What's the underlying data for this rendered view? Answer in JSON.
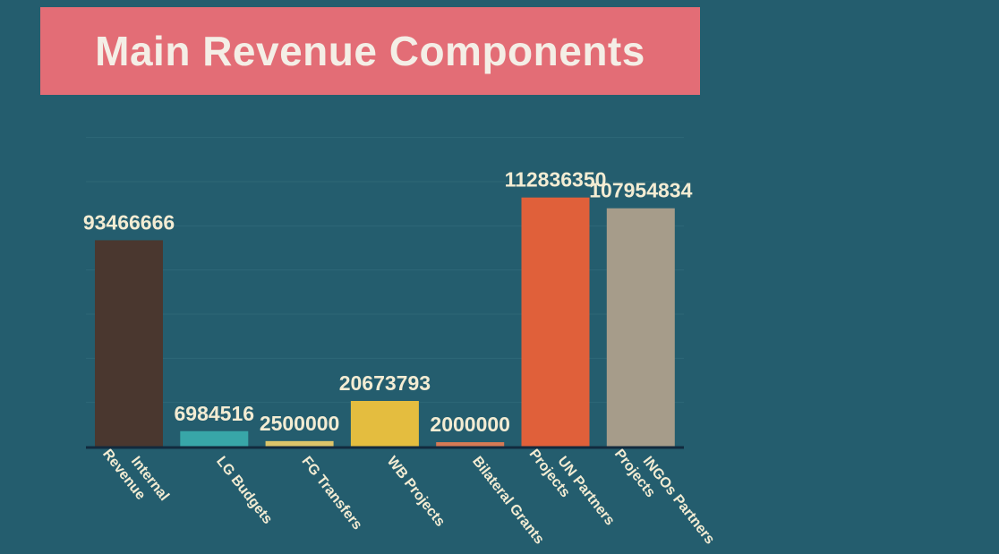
{
  "chart_data": {
    "type": "bar",
    "title": "Main Revenue Components",
    "categories": [
      [
        "Internal",
        "Revenue"
      ],
      [
        "LG Budgets"
      ],
      [
        "FG Transfers"
      ],
      [
        "WB Projects"
      ],
      [
        "Bilateral Grants"
      ],
      [
        "UN Partners",
        "Projects"
      ],
      [
        "INGOs Partners",
        "Projects"
      ]
    ],
    "values": [
      93466666,
      6984516,
      2500000,
      20673793,
      2000000,
      112836350,
      107954834
    ],
    "value_labels": [
      "93466666",
      "6984516",
      "2500000",
      "20673793",
      "2000000",
      "112836350",
      "107954834"
    ],
    "colors": [
      "#4a372f",
      "#38a6a8",
      "#ddc56a",
      "#e4bd3f",
      "#d77a55",
      "#e0603a",
      "#a69c8a"
    ],
    "ylim": [
      0,
      140000000
    ],
    "grid": true,
    "legend": "none",
    "xlabel": "",
    "ylabel": ""
  },
  "style": {
    "label_color": "#f3ecd3",
    "grid_color": "#2e6777",
    "axis_color": "#122a3e"
  }
}
